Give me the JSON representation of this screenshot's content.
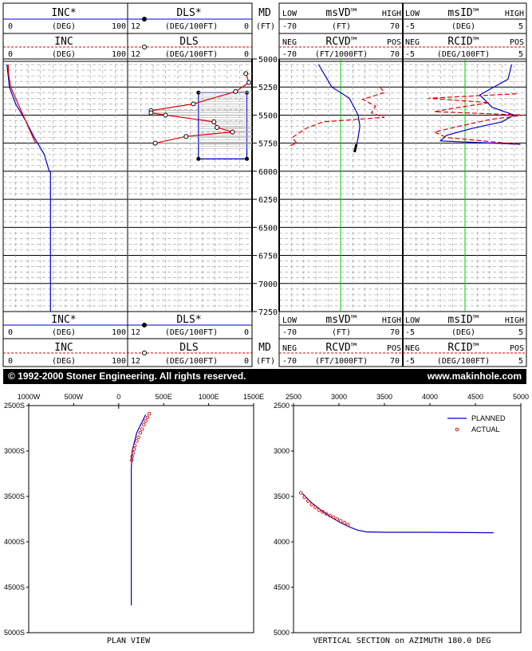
{
  "colors": {
    "planned": "#0000cc",
    "actual": "#dd0000",
    "green": "#00cc00",
    "grid": "#999999",
    "black": "#000000"
  },
  "header": {
    "inc_star": "INC*",
    "inc": "INC",
    "dls_star": "DLS*",
    "dls": "DLS",
    "md": "MD",
    "ft": "(FT)",
    "deg": "(DEG)",
    "deg100": "(DEG/100FT)",
    "inc_min": "0",
    "inc_max": "100",
    "dls_min": "12",
    "dls_max": "0",
    "msvd": "msVD™",
    "msid": "msID™",
    "rcvd": "RCVD™",
    "rcid": "RCID™",
    "low": "LOW",
    "high": "HIGH",
    "neg": "NEG",
    "pos": "POS",
    "ft_unit": "(FT)",
    "ft1000": "(FT/1000FT)",
    "deg_unit": "(DEG)",
    "deg100_unit": "(DEG/100FT)",
    "msvd_min": "-70",
    "msvd_max": "70",
    "msid_min": "-5",
    "msid_max": "5",
    "rcvd_min": "-70",
    "rcvd_max": "70",
    "rcid_min": "-5",
    "rcid_max": "5"
  },
  "banner": {
    "copyright": "© 1992-2000 Stoner Engineering. All rights reserved.",
    "website": "www.makinhole.com"
  },
  "chart_data": [
    {
      "type": "line",
      "title": "",
      "depth_ticks": [
        "5000",
        "5250",
        "5500",
        "5750",
        "6000",
        "6250",
        "6500",
        "6750",
        "7000",
        "7250"
      ],
      "depth_range": [
        5000,
        7250
      ],
      "inc": {
        "range": [
          0,
          100
        ],
        "planned": [
          [
            5050,
            3
          ],
          [
            5250,
            5
          ],
          [
            5400,
            10
          ],
          [
            5550,
            18
          ],
          [
            5700,
            25
          ],
          [
            5850,
            33
          ],
          [
            6000,
            37
          ],
          [
            6010,
            38
          ],
          [
            7250,
            38
          ]
        ],
        "actual": [
          [
            5050,
            4
          ],
          [
            5150,
            4.5
          ],
          [
            5250,
            6
          ],
          [
            5350,
            10
          ],
          [
            5450,
            14
          ],
          [
            5550,
            18
          ],
          [
            5650,
            22
          ],
          [
            5750,
            26
          ]
        ]
      },
      "dls": {
        "range": [
          12,
          0
        ],
        "planned_box": {
          "top": 5300,
          "bottom": 5890,
          "dls_low": 0.5,
          "dls_high": 5.2
        },
        "planned_pts": [
          [
            5300,
            5.2
          ],
          [
            5890,
            5.2
          ],
          [
            5890,
            0.5
          ],
          [
            5300,
            0.5
          ]
        ],
        "actual": [
          [
            5130,
            0.6
          ],
          [
            5210,
            0.3
          ],
          [
            5290,
            1.6
          ],
          [
            5400,
            5.7
          ],
          [
            5460,
            9.8
          ],
          [
            5480,
            9.8
          ],
          [
            5500,
            8.4
          ],
          [
            5560,
            3.7
          ],
          [
            5610,
            3.4
          ],
          [
            5650,
            1.9
          ],
          [
            5690,
            6.4
          ],
          [
            5750,
            9.4
          ]
        ]
      },
      "msvd": {
        "range": [
          -70,
          70
        ],
        "green": 0,
        "planned": [
          [
            5050,
            -25
          ],
          [
            5250,
            -10
          ],
          [
            5350,
            10
          ],
          [
            5500,
            20
          ],
          [
            5600,
            22
          ],
          [
            5700,
            20
          ],
          [
            5780,
            18
          ],
          [
            5830,
            15
          ]
        ],
        "actual_thick": [
          [
            5760,
            18
          ],
          [
            5830,
            16
          ]
        ]
      },
      "rcvd": {
        "range": [
          -70,
          70
        ],
        "actual": [
          [
            5250,
            45
          ],
          [
            5300,
            50
          ],
          [
            5360,
            25
          ],
          [
            5420,
            40
          ],
          [
            5480,
            35
          ],
          [
            5520,
            50
          ],
          [
            5560,
            -20
          ],
          [
            5620,
            -40
          ],
          [
            5700,
            -55
          ],
          [
            5750,
            -50
          ],
          [
            5780,
            -60
          ]
        ]
      },
      "msid": {
        "range": [
          -5,
          5
        ],
        "green": 0,
        "planned": [
          [
            5050,
            3.8
          ],
          [
            5180,
            3.5
          ],
          [
            5320,
            1.2
          ],
          [
            5430,
            2.2
          ],
          [
            5500,
            4.0
          ],
          [
            5560,
            3.0
          ],
          [
            5620,
            0.5
          ],
          [
            5680,
            -1.5
          ],
          [
            5730,
            -2
          ],
          [
            5760,
            4.5
          ]
        ]
      },
      "rcid": {
        "range": [
          -5,
          5
        ],
        "actual": [
          [
            5310,
            4.2
          ],
          [
            5350,
            -3.0
          ],
          [
            5390,
            2.0
          ],
          [
            5440,
            -1.0
          ],
          [
            5470,
            -2.5
          ],
          [
            5500,
            4.8
          ],
          [
            5540,
            2.0
          ],
          [
            5600,
            -0.5
          ],
          [
            5650,
            -2.5
          ],
          [
            5700,
            -1.5
          ],
          [
            5760,
            4.5
          ]
        ]
      }
    },
    {
      "type": "scatter",
      "title": "",
      "xlabel": "PLAN VIEW",
      "xticks": [
        "1000W",
        "500W",
        "0",
        "500E",
        "1000E",
        "1500E"
      ],
      "yticks": [
        "2500S",
        "3000S",
        "3500S",
        "4000S",
        "4500S",
        "5000S"
      ],
      "xlim": [
        -1000,
        1500
      ],
      "ylim": [
        2500,
        5000
      ],
      "planned": [
        [
          300,
          2600
        ],
        [
          250,
          2700
        ],
        [
          200,
          2800
        ],
        [
          150,
          3000
        ],
        [
          140,
          3200
        ],
        [
          140,
          3500
        ],
        [
          140,
          4000
        ],
        [
          140,
          4700
        ]
      ],
      "actual": [
        [
          340,
          2590
        ],
        [
          320,
          2630
        ],
        [
          300,
          2670
        ],
        [
          280,
          2710
        ],
        [
          260,
          2760
        ],
        [
          240,
          2800
        ],
        [
          220,
          2850
        ],
        [
          200,
          2890
        ],
        [
          180,
          2940
        ],
        [
          170,
          2980
        ],
        [
          160,
          3020
        ],
        [
          150,
          3060
        ],
        [
          145,
          3100
        ]
      ]
    },
    {
      "type": "scatter",
      "title": "",
      "xlabel": "VERTICAL SECTION on AZIMUTH 180.0 DEG",
      "xticks": [
        "2500",
        "3000",
        "3500",
        "4000",
        "4500",
        "5000"
      ],
      "yticks": [
        "2500",
        "3000",
        "3500",
        "4000",
        "4500",
        "5000"
      ],
      "xlim": [
        2500,
        5000
      ],
      "ylim": [
        2500,
        5000
      ],
      "legend": [
        "PLANNED",
        "ACTUAL"
      ],
      "legend_position": "top-right",
      "planned": [
        [
          2600,
          3470
        ],
        [
          2700,
          3570
        ],
        [
          2800,
          3650
        ],
        [
          2900,
          3720
        ],
        [
          3000,
          3780
        ],
        [
          3100,
          3830
        ],
        [
          3200,
          3870
        ],
        [
          3300,
          3890
        ],
        [
          3500,
          3895
        ],
        [
          4000,
          3895
        ],
        [
          4700,
          3900
        ]
      ],
      "actual": [
        [
          2580,
          3460
        ],
        [
          2620,
          3510
        ],
        [
          2660,
          3550
        ],
        [
          2700,
          3590
        ],
        [
          2740,
          3620
        ],
        [
          2780,
          3650
        ],
        [
          2820,
          3670
        ],
        [
          2860,
          3690
        ],
        [
          2900,
          3710
        ],
        [
          2940,
          3730
        ],
        [
          2980,
          3750
        ],
        [
          3020,
          3770
        ],
        [
          3060,
          3790
        ],
        [
          3100,
          3810
        ]
      ]
    }
  ]
}
